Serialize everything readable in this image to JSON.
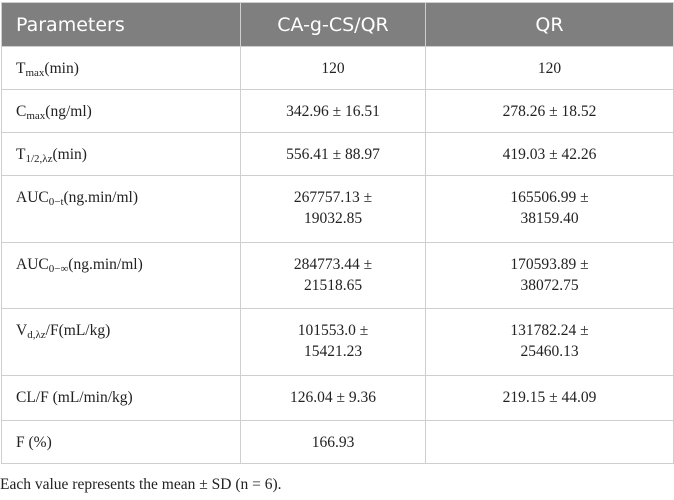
{
  "table": {
    "header": [
      "Parameters",
      "CA-g-CS/QR",
      "QR"
    ],
    "rows": [
      {
        "parameter": {
          "base": "T",
          "sub": "max",
          "rest": "(min)"
        },
        "values": [
          "120",
          "120"
        ]
      },
      {
        "parameter": {
          "base": "C",
          "sub": "max",
          "rest": "(ng/ml)"
        },
        "values": [
          "342.96 ± 16.51",
          "278.26 ± 18.52"
        ]
      },
      {
        "parameter": {
          "base": "T",
          "sub": "1/2,λz",
          "rest": "(min)"
        },
        "values": [
          "556.41 ± 88.97",
          "419.03 ± 42.26"
        ]
      },
      {
        "parameter": {
          "base": "AUC",
          "sub": "0−t",
          "rest": "(ng.min/ml)"
        },
        "values": [
          "267757.13 ± 19032.85",
          "165506.99 ± 38159.40"
        ]
      },
      {
        "parameter": {
          "base": "AUC",
          "sub": "0−∞",
          "rest": "(ng.min/ml)"
        },
        "values": [
          "284773.44 ± 21518.65",
          "170593.89 ± 38072.75"
        ]
      },
      {
        "parameter": {
          "base": "V",
          "sub": "d,λz",
          "rest": "/F(mL/kg)"
        },
        "values": [
          "101553.0 ± 15421.23",
          "131782.24 ± 25460.13"
        ]
      },
      {
        "parameter": "CL/F (mL/min/kg)",
        "values": [
          "126.04 ± 9.36",
          "219.15 ± 44.09"
        ]
      },
      {
        "parameter": "F (%)",
        "values": [
          "166.93"
        ]
      }
    ],
    "footnote": "Each value represents the mean ± SD (n = 6)."
  }
}
